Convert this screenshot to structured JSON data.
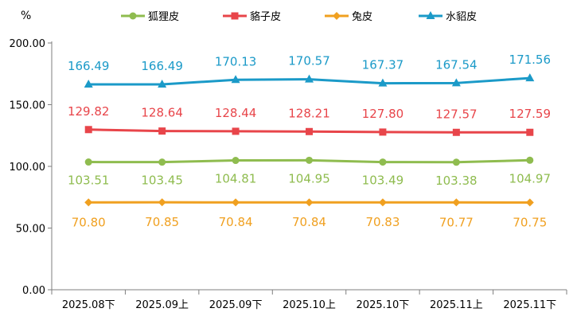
{
  "chart_data": {
    "type": "line",
    "unit": "%",
    "categories": [
      "2025.08下",
      "2025.09上",
      "2025.09下",
      "2025.10上",
      "2025.10下",
      "2025.11上",
      "2025.11下"
    ],
    "ylim": [
      0,
      200
    ],
    "yticks": [
      "0.00",
      "50.00",
      "100.00",
      "150.00",
      "200.00"
    ],
    "grid": false,
    "legend_position": "top",
    "series": [
      {
        "name": "狐狸皮",
        "color": "#8fbc4f",
        "marker": "circle",
        "values": [
          103.51,
          103.45,
          104.81,
          104.95,
          103.49,
          103.38,
          104.97
        ],
        "labels": [
          "103.51",
          "103.45",
          "104.81",
          "104.95",
          "103.49",
          "103.38",
          "104.97"
        ]
      },
      {
        "name": "貉子皮",
        "color": "#e8454a",
        "marker": "square",
        "values": [
          129.82,
          128.64,
          128.44,
          128.21,
          127.8,
          127.57,
          127.59
        ],
        "labels": [
          "129.82",
          "128.64",
          "128.44",
          "128.21",
          "127.80",
          "127.57",
          "127.59"
        ]
      },
      {
        "name": "兔皮",
        "color": "#f0a020",
        "marker": "diamond",
        "values": [
          70.8,
          70.85,
          70.84,
          70.84,
          70.83,
          70.77,
          70.75
        ],
        "labels": [
          "70.80",
          "70.85",
          "70.84",
          "70.84",
          "70.83",
          "70.77",
          "70.75"
        ]
      },
      {
        "name": "水貂皮",
        "color": "#1b9ac8",
        "marker": "triangle",
        "values": [
          166.49,
          166.49,
          170.13,
          170.57,
          167.37,
          167.54,
          171.56
        ],
        "labels": [
          "166.49",
          "166.49",
          "170.13",
          "170.57",
          "167.37",
          "167.54",
          "171.56"
        ]
      }
    ]
  }
}
